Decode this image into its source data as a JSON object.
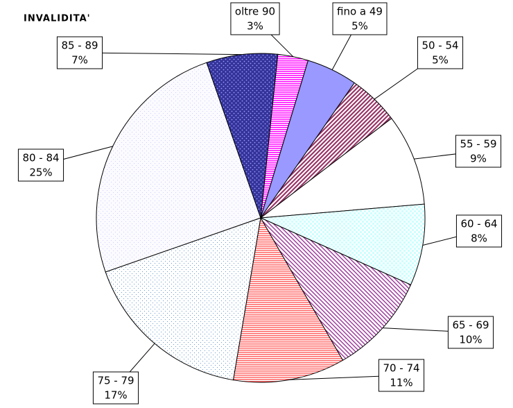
{
  "chart_data": {
    "type": "pie",
    "title": "INVALIDITA'",
    "categories": [
      "oltre 90",
      "fino a 49",
      "50 - 54",
      "55 - 59",
      "60 - 64",
      "65 - 69",
      "70 - 74",
      "75 - 79",
      "80 - 84",
      "85 - 89"
    ],
    "values": [
      3,
      5,
      5,
      9,
      8,
      10,
      11,
      17,
      25,
      7
    ],
    "value_labels": [
      "3%",
      "5%",
      "5%",
      "9%",
      "8%",
      "10%",
      "11%",
      "17%",
      "25%",
      "7%"
    ],
    "colors": [
      "#ff00ff",
      "#9999ff",
      "#993366",
      "#ffffff",
      "#ccffff",
      "#993399",
      "#ff6666",
      "#6699cc",
      "#ccccff",
      "#333399"
    ]
  }
}
